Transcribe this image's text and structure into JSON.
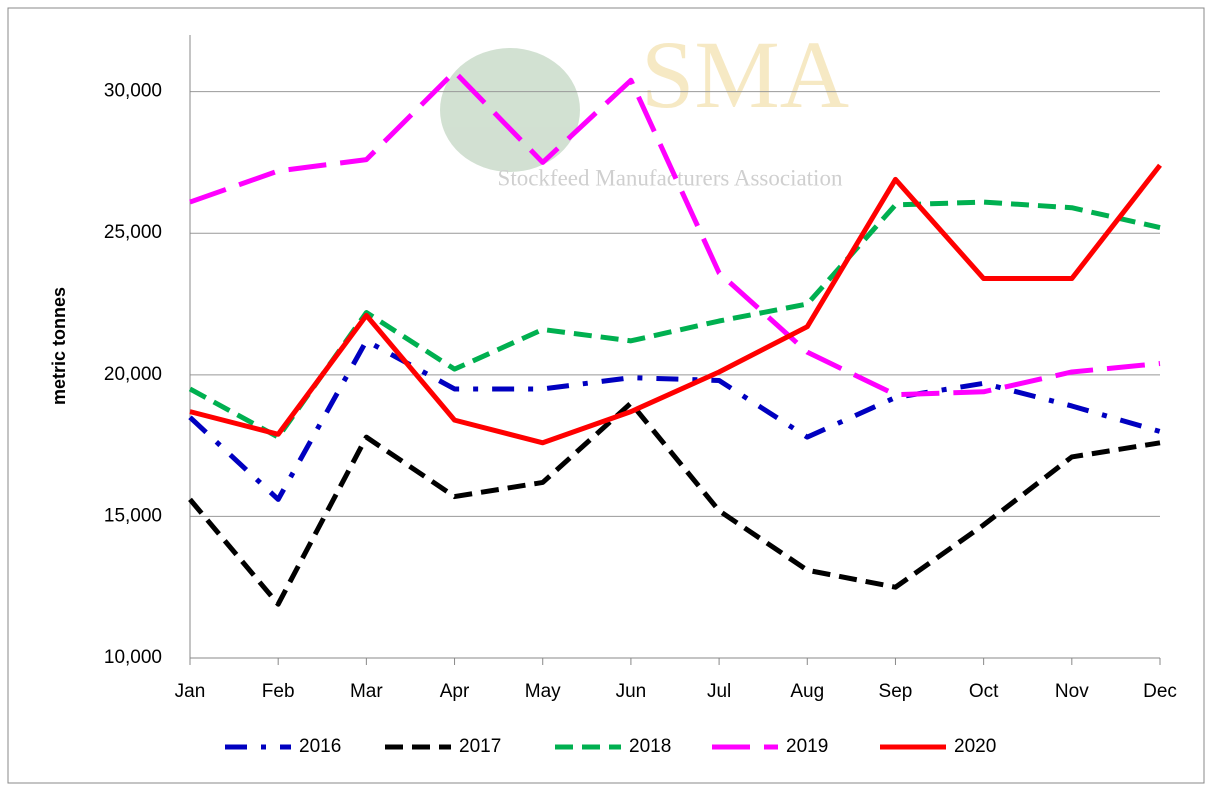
{
  "chart_data": {
    "type": "line",
    "watermark": {
      "title": "SMA",
      "subtitle": "Stockfeed Manufacturers Association"
    },
    "y_label": "metric tonnes",
    "categories": [
      "Jan",
      "Feb",
      "Mar",
      "Apr",
      "May",
      "Jun",
      "Jul",
      "Aug",
      "Sep",
      "Oct",
      "Nov",
      "Dec"
    ],
    "series": [
      {
        "name": "2016",
        "color": "#0000c0",
        "style": "dash-dot",
        "values": [
          18500,
          15600,
          21200,
          19500,
          19500,
          19900,
          19800,
          17800,
          19200,
          19700,
          18900,
          18000
        ]
      },
      {
        "name": "2017",
        "color": "#000000",
        "style": "dash",
        "values": [
          15600,
          11900,
          17800,
          15700,
          16200,
          19000,
          15200,
          13100,
          12500,
          14700,
          17100,
          17600
        ]
      },
      {
        "name": "2018",
        "color": "#00b050",
        "style": "dash",
        "values": [
          19500,
          17800,
          22200,
          20200,
          21600,
          21200,
          21900,
          22500,
          26000,
          26100,
          25900,
          25200
        ]
      },
      {
        "name": "2019",
        "color": "#ff00ff",
        "style": "long-dash",
        "values": [
          26100,
          27200,
          27600,
          30700,
          27500,
          30400,
          23600,
          20800,
          19300,
          19400,
          20100,
          20400
        ]
      },
      {
        "name": "2020",
        "color": "#ff0000",
        "style": "solid",
        "values": [
          18700,
          17900,
          22100,
          18400,
          17600,
          18700,
          20100,
          21700,
          26900,
          23400,
          23400,
          27400
        ]
      }
    ],
    "ylim": [
      10000,
      32000
    ],
    "yticks": [
      {
        "value": 10000,
        "label": "10,000"
      },
      {
        "value": 15000,
        "label": "15,000"
      },
      {
        "value": 20000,
        "label": "20,000"
      },
      {
        "value": 25000,
        "label": "25,000"
      },
      {
        "value": 30000,
        "label": "30,000"
      }
    ],
    "grid": true,
    "legend": "bottom"
  }
}
